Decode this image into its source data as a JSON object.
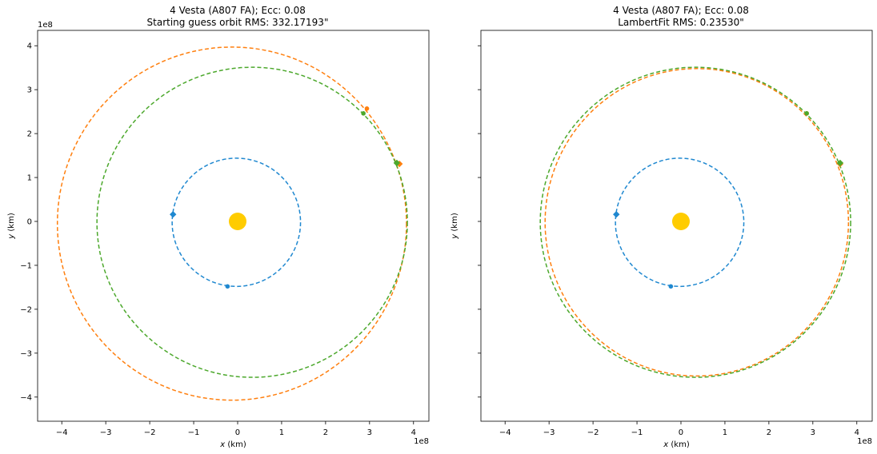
{
  "chart_data": [
    {
      "type": "scatter",
      "title": "4 Vesta (A807 FA); Ecc: 0.08",
      "subtitle": "Starting guess orbit RMS: 332.17193\"",
      "xlabel_var": "x",
      "xlabel_unit": " (km)",
      "ylabel_var": "y",
      "ylabel_unit": " (km)",
      "xlim": [
        -4.55,
        4.35
      ],
      "ylim": [
        -4.55,
        4.35
      ],
      "xticks": [
        -4,
        -3,
        -2,
        -1,
        0,
        1,
        2,
        3,
        4
      ],
      "yticks": [
        -4,
        -3,
        -2,
        -1,
        0,
        1,
        2,
        3,
        4
      ],
      "ytick_labels_visible": true,
      "scale_label": "1e8",
      "units_note": "values in units of 1e8 km",
      "sun": {
        "x": 0,
        "y": 0,
        "color": "#ffcc00"
      },
      "orbits": [
        {
          "color": "#1f88d0",
          "cx": -0.03,
          "cy": -0.02,
          "rx": 1.46,
          "ry": 1.46,
          "dashed": true
        },
        {
          "color": "#ff7f0e",
          "cx": -0.13,
          "cy": -0.05,
          "rx": 3.97,
          "ry": 4.02,
          "dashed": true
        },
        {
          "color": "#4ca82c",
          "cx": 0.33,
          "cy": -0.02,
          "rx": 3.53,
          "ry": 3.53,
          "dashed": true
        }
      ],
      "markers": [
        {
          "color": "#1f88d0",
          "x": -1.47,
          "y": 0.16,
          "shape": "diamond"
        },
        {
          "color": "#1f88d0",
          "x": -0.23,
          "y": -1.48,
          "shape": "circle"
        },
        {
          "color": "#ff7f0e",
          "x": 3.68,
          "y": 1.31,
          "shape": "diamond"
        },
        {
          "color": "#ff7f0e",
          "x": 2.94,
          "y": 2.57,
          "shape": "circle"
        },
        {
          "color": "#4ca82c",
          "x": 3.62,
          "y": 1.33,
          "shape": "diamond"
        },
        {
          "color": "#4ca82c",
          "x": 2.86,
          "y": 2.46,
          "shape": "circle"
        }
      ]
    },
    {
      "type": "scatter",
      "title": "4 Vesta (A807 FA); Ecc: 0.08",
      "subtitle": "LambertFit RMS: 0.23530\"",
      "xlabel_var": "x",
      "xlabel_unit": " (km)",
      "ylabel_var": "y",
      "ylabel_unit": " (km)",
      "xlim": [
        -4.55,
        4.35
      ],
      "ylim": [
        -4.55,
        4.35
      ],
      "xticks": [
        -4,
        -3,
        -2,
        -1,
        0,
        1,
        2,
        3,
        4
      ],
      "yticks": [
        -4,
        -3,
        -2,
        -1,
        0,
        1,
        2,
        3,
        4
      ],
      "ytick_labels_visible": false,
      "scale_label": "1e8",
      "units_note": "values in units of 1e8 km",
      "sun": {
        "x": 0,
        "y": 0,
        "color": "#ffcc00"
      },
      "orbits": [
        {
          "color": "#1f88d0",
          "cx": -0.03,
          "cy": -0.02,
          "rx": 1.46,
          "ry": 1.46,
          "dashed": true
        },
        {
          "color": "#ff7f0e",
          "cx": 0.36,
          "cy": -0.02,
          "rx": 3.45,
          "ry": 3.5,
          "dashed": true
        },
        {
          "color": "#4ca82c",
          "cx": 0.33,
          "cy": -0.02,
          "rx": 3.53,
          "ry": 3.53,
          "dashed": true
        }
      ],
      "markers": [
        {
          "color": "#1f88d0",
          "x": -1.47,
          "y": 0.16,
          "shape": "diamond"
        },
        {
          "color": "#1f88d0",
          "x": -0.23,
          "y": -1.48,
          "shape": "circle"
        },
        {
          "color": "#ff7f0e",
          "x": 3.62,
          "y": 1.31,
          "shape": "diamond"
        },
        {
          "color": "#ff7f0e",
          "x": 2.86,
          "y": 2.46,
          "shape": "circle"
        },
        {
          "color": "#4ca82c",
          "x": 3.62,
          "y": 1.33,
          "shape": "diamond"
        },
        {
          "color": "#4ca82c",
          "x": 2.86,
          "y": 2.46,
          "shape": "circle"
        }
      ]
    }
  ]
}
